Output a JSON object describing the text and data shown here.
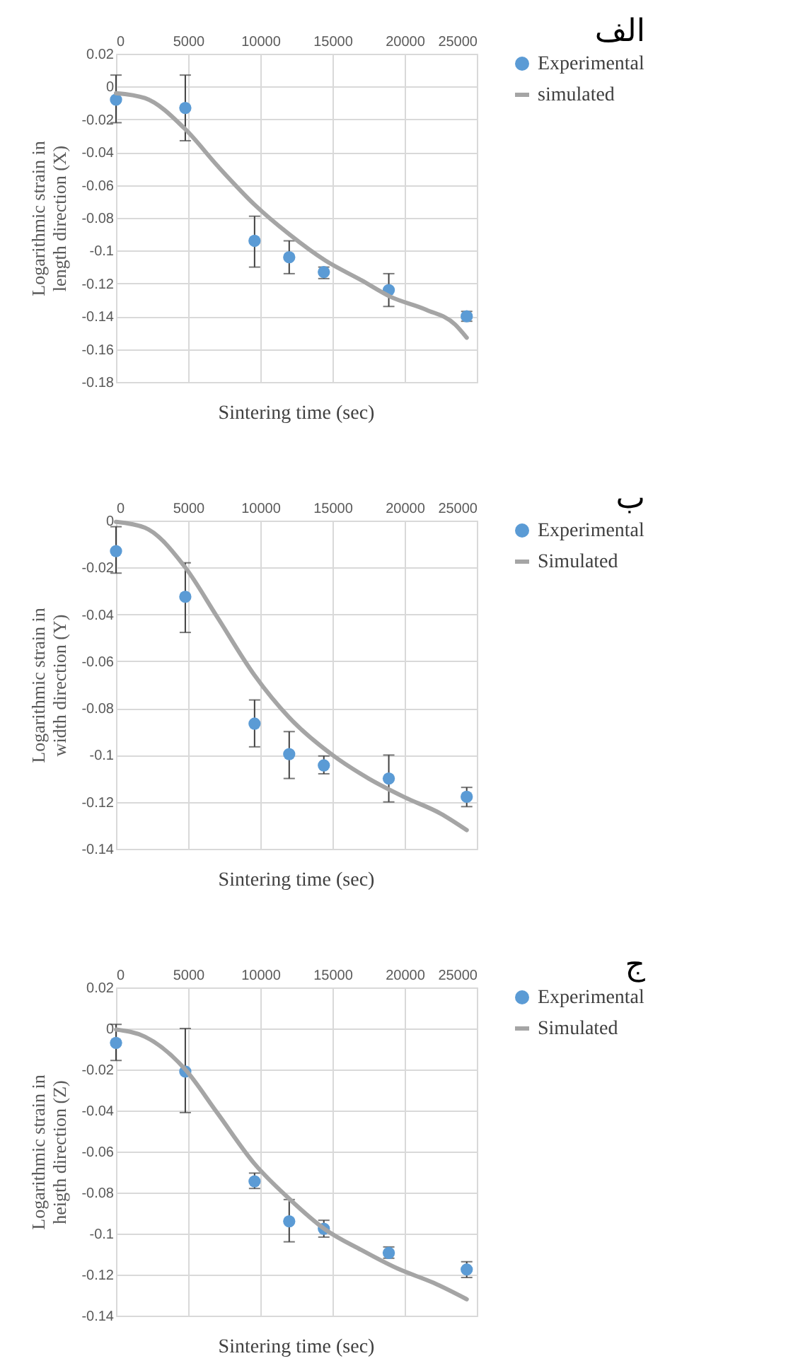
{
  "chart_data": [
    {
      "type": "scatter",
      "annotations": [
        "الف"
      ],
      "xlabel": "Sintering time (sec)",
      "ylabel": "Logarithmic strain in length direction (X)",
      "xlim": [
        0,
        25000
      ],
      "xticks": [
        0,
        5000,
        10000,
        15000,
        20000,
        25000
      ],
      "ylim": [
        -0.18,
        0.02
      ],
      "yticks": [
        0.02,
        0,
        -0.02,
        -0.04,
        -0.06,
        -0.08,
        -0.1,
        -0.12,
        -0.14,
        -0.16,
        -0.18
      ],
      "grid": true,
      "legend": "right",
      "series": [
        {
          "name": "Experimental",
          "color": "#5b9bd5",
          "marker": "circle",
          "x": [
            0,
            4800,
            9600,
            12000,
            14400,
            18900,
            24300
          ],
          "values": [
            -0.008,
            -0.013,
            -0.094,
            -0.104,
            -0.113,
            -0.124,
            -0.14
          ],
          "errors": [
            [
              -0.022,
              0.007
            ],
            [
              -0.033,
              0.007
            ],
            [
              -0.11,
              -0.079
            ],
            [
              -0.114,
              -0.094
            ],
            [
              -0.117,
              -0.11
            ],
            [
              -0.134,
              -0.114
            ],
            [
              -0.143,
              -0.137
            ]
          ]
        },
        {
          "name": "simulated",
          "type": "line",
          "color": "#a5a5a5",
          "line_style": "solid",
          "x": [
            0,
            2000,
            4800,
            7000,
            9600,
            12000,
            14500,
            17000,
            19000,
            21500,
            23500,
            24300
          ],
          "values": [
            -0.004,
            -0.007,
            -0.026,
            -0.048,
            -0.072,
            -0.09,
            -0.106,
            -0.118,
            -0.128,
            -0.136,
            -0.145,
            -0.153
          ]
        }
      ]
    },
    {
      "type": "scatter",
      "annotations": [
        "ب"
      ],
      "xlabel": "Sintering time (sec)",
      "ylabel": "Logarithmic strain in width direction (Y)",
      "xlim": [
        0,
        25000
      ],
      "xticks": [
        0,
        5000,
        10000,
        15000,
        20000,
        25000
      ],
      "ylim": [
        -0.14,
        0
      ],
      "yticks": [
        0,
        -0.02,
        -0.04,
        -0.06,
        -0.08,
        -0.1,
        -0.12,
        -0.14
      ],
      "grid": true,
      "legend": "right",
      "series": [
        {
          "name": "Experimental",
          "color": "#5b9bd5",
          "marker": "circle",
          "x": [
            0,
            4800,
            9600,
            12000,
            14400,
            18900,
            24300
          ],
          "values": [
            -0.013,
            -0.0325,
            -0.0866,
            -0.0996,
            -0.1044,
            -0.11,
            -0.1178
          ],
          "errors": [
            [
              -0.0224,
              -0.0026
            ],
            [
              -0.0477,
              -0.018
            ],
            [
              -0.0965,
              -0.0765
            ],
            [
              -0.11,
              -0.09
            ],
            [
              -0.108,
              -0.1004
            ],
            [
              -0.12,
              -0.1
            ],
            [
              -0.122,
              -0.1138
            ]
          ]
        },
        {
          "name": "Simulated",
          "type": "line",
          "color": "#a5a5a5",
          "line_style": "solid",
          "x": [
            0,
            2000,
            4800,
            7000,
            9600,
            12000,
            15000,
            17500,
            20000,
            22500,
            24300
          ],
          "values": [
            -0.0005,
            -0.003,
            -0.02,
            -0.041,
            -0.066,
            -0.084,
            -0.1,
            -0.11,
            -0.118,
            -0.125,
            -0.132
          ]
        }
      ]
    },
    {
      "type": "scatter",
      "annotations": [
        "ج"
      ],
      "xlabel": "Sintering time (sec)",
      "ylabel": "Logarithmic strain in heigth direction (Z)",
      "xlim": [
        0,
        25000
      ],
      "xticks": [
        0,
        5000,
        10000,
        15000,
        20000,
        25000
      ],
      "ylim": [
        -0.14,
        0.02
      ],
      "yticks": [
        0.02,
        0,
        -0.02,
        -0.04,
        -0.06,
        -0.08,
        -0.1,
        -0.12,
        -0.14
      ],
      "grid": true,
      "legend": "right",
      "series": [
        {
          "name": "Experimental",
          "color": "#5b9bd5",
          "marker": "circle",
          "x": [
            0,
            4800,
            9600,
            12000,
            14400,
            18900,
            24300
          ],
          "values": [
            -0.007,
            -0.021,
            -0.0745,
            -0.094,
            -0.0976,
            -0.1094,
            -0.1175
          ],
          "errors": [
            [
              -0.0156,
              0.002
            ],
            [
              -0.041,
              0
            ],
            [
              -0.078,
              -0.0705
            ],
            [
              -0.104,
              -0.0834
            ],
            [
              -0.1017,
              -0.0935
            ],
            [
              -0.112,
              -0.1065
            ],
            [
              -0.1214,
              -0.1137
            ]
          ]
        },
        {
          "name": "Simulated",
          "type": "line",
          "color": "#a5a5a5",
          "line_style": "solid",
          "x": [
            0,
            2000,
            4800,
            7000,
            9600,
            12000,
            14500,
            17000,
            19500,
            22000,
            24300
          ],
          "values": [
            -0.0005,
            -0.004,
            -0.02,
            -0.041,
            -0.066,
            -0.083,
            -0.098,
            -0.108,
            -0.117,
            -0.124,
            -0.132
          ]
        }
      ]
    }
  ]
}
